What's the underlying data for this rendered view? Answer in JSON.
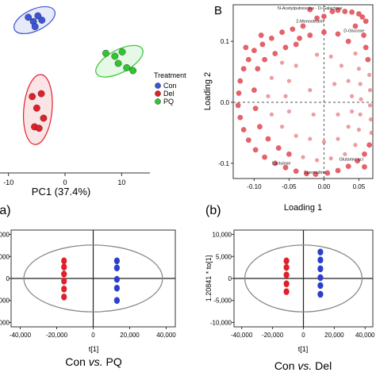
{
  "chart_data": [
    {
      "id": "pca_scores",
      "type": "scatter",
      "xlabel": "PC1 (37.4%)",
      "xticks": [
        -10,
        0,
        10
      ],
      "xlim": [
        -11.5,
        15
      ],
      "ylim": [
        -13,
        11
      ],
      "legend": {
        "title": "Treatment",
        "placement": "right"
      },
      "series": [
        {
          "name": "Con",
          "color": "#3a55d8",
          "points": [
            [
              -6.5,
              8.6
            ],
            [
              -5.6,
              8.0
            ],
            [
              -4.8,
              8.8
            ],
            [
              -5.3,
              7.3
            ],
            [
              -4.1,
              8.2
            ]
          ],
          "ellipse": {
            "cx": -5.4,
            "cy": 8.2,
            "rx": 3.9,
            "ry": 1.9,
            "angle": -25
          }
        },
        {
          "name": "Del",
          "color": "#e0202a",
          "points": [
            [
              -5.8,
              -2.4
            ],
            [
              -4.2,
              -2.0
            ],
            [
              -5.0,
              -4.0
            ],
            [
              -3.8,
              -5.4
            ],
            [
              -5.4,
              -6.6
            ],
            [
              -4.6,
              -6.8
            ]
          ],
          "ellipse": {
            "cx": -4.8,
            "cy": -4.2,
            "rx": 2.5,
            "ry": 6.2,
            "angle": 5
          }
        },
        {
          "name": "PQ",
          "color": "#2fc62f",
          "points": [
            [
              7.2,
              3.6
            ],
            [
              8.8,
              3.2
            ],
            [
              10.1,
              3.8
            ],
            [
              9.4,
              2.2
            ],
            [
              10.9,
              1.6
            ],
            [
              12.0,
              1.2
            ]
          ],
          "ellipse": {
            "cx": 9.6,
            "cy": 2.5,
            "rx": 4.6,
            "ry": 2.0,
            "angle": -28
          }
        }
      ]
    },
    {
      "id": "loading_plot",
      "panel": "B",
      "type": "scatter",
      "xlabel": "Loading 1",
      "ylabel": "Loading 2",
      "xlim": [
        -0.13,
        0.07
      ],
      "ylim": [
        -0.125,
        0.16
      ],
      "xticks": [
        -0.1,
        -0.05,
        0.0,
        0.05
      ],
      "yticks": [
        -0.1,
        0.0,
        0.1
      ],
      "xtick_labels": [
        "-0.10",
        "-0.05",
        "0.00",
        "0.05"
      ],
      "ytick_labels": [
        "-0.1",
        "0.0",
        "0.1"
      ],
      "point_color": "#e35a62",
      "annotations": [
        {
          "text": "N-Acetylputrescine · D-Galactose",
          "x": -0.02,
          "y": 0.152
        },
        {
          "text": "2-Monostearin",
          "x": -0.02,
          "y": 0.131
        },
        {
          "text": "D-Glucose",
          "x": 0.043,
          "y": 0.115
        },
        {
          "text": "Lactulose",
          "x": -0.061,
          "y": -0.102
        },
        {
          "text": "Spermidine",
          "x": -0.013,
          "y": -0.117
        },
        {
          "text": "Glutamic aci",
          "x": 0.039,
          "y": -0.096
        }
      ],
      "points": [
        [
          -0.02,
          0.152
        ],
        [
          0.02,
          0.151
        ],
        [
          0.04,
          0.148
        ],
        [
          0.05,
          0.145
        ],
        [
          0.055,
          0.14
        ],
        [
          0.06,
          0.133
        ],
        [
          -0.01,
          0.138
        ],
        [
          0.0,
          0.141
        ],
        [
          -0.03,
          0.125
        ],
        [
          -0.045,
          0.12
        ],
        [
          -0.06,
          0.115
        ],
        [
          -0.075,
          0.105
        ],
        [
          -0.088,
          0.095
        ],
        [
          -0.1,
          0.085
        ],
        [
          -0.108,
          0.07
        ],
        [
          -0.115,
          0.055
        ],
        [
          -0.12,
          0.035
        ],
        [
          -0.122,
          0.015
        ],
        [
          -0.123,
          -0.005
        ],
        [
          -0.12,
          -0.025
        ],
        [
          -0.115,
          -0.045
        ],
        [
          -0.108,
          -0.062
        ],
        [
          -0.098,
          -0.078
        ],
        [
          -0.085,
          -0.09
        ],
        [
          -0.07,
          -0.1
        ],
        [
          -0.055,
          -0.107
        ],
        [
          -0.04,
          -0.113
        ],
        [
          -0.025,
          -0.117
        ],
        [
          -0.012,
          -0.118
        ],
        [
          0.005,
          -0.116
        ],
        [
          0.02,
          -0.112
        ],
        [
          0.035,
          -0.105
        ],
        [
          0.048,
          -0.096
        ],
        [
          0.058,
          -0.085
        ],
        [
          0.065,
          -0.07
        ],
        [
          0.068,
          -0.05
        ],
        [
          0.067,
          -0.028
        ],
        [
          0.066,
          -0.005
        ],
        [
          0.066,
          0.02
        ],
        [
          0.065,
          0.045
        ],
        [
          0.063,
          0.07
        ],
        [
          0.06,
          0.09
        ],
        [
          0.057,
          0.11
        ],
        [
          0.012,
          0.149
        ],
        [
          0.03,
          0.149
        ],
        [
          -0.095,
          0.055
        ],
        [
          -0.085,
          0.07
        ],
        [
          -0.07,
          0.08
        ],
        [
          -0.055,
          0.09
        ],
        [
          -0.04,
          0.095
        ],
        [
          -0.1,
          0.02
        ],
        [
          -0.098,
          -0.01
        ],
        [
          -0.092,
          -0.04
        ],
        [
          -0.08,
          -0.06
        ],
        [
          -0.065,
          -0.075
        ],
        [
          -0.05,
          -0.085
        ],
        [
          -0.03,
          -0.09
        ],
        [
          -0.01,
          -0.095
        ],
        [
          0.01,
          -0.092
        ],
        [
          0.03,
          -0.085
        ],
        [
          0.045,
          -0.07
        ],
        [
          0.05,
          -0.045
        ],
        [
          0.052,
          -0.02
        ],
        [
          0.053,
          0.005
        ],
        [
          0.052,
          0.03
        ],
        [
          0.05,
          0.055
        ],
        [
          0.045,
          0.08
        ],
        [
          0.035,
          0.1
        ],
        [
          0.02,
          0.112
        ],
        [
          0.0,
          0.115
        ],
        [
          -0.02,
          0.11
        ],
        [
          -0.035,
          0.105
        ],
        [
          -0.06,
          0.065
        ],
        [
          -0.075,
          0.04
        ],
        [
          -0.08,
          0.01
        ],
        [
          -0.075,
          -0.02
        ],
        [
          -0.06,
          -0.04
        ],
        [
          -0.04,
          -0.055
        ],
        [
          -0.02,
          -0.06
        ],
        [
          0.0,
          -0.065
        ],
        [
          0.02,
          -0.06
        ],
        [
          0.035,
          -0.04
        ],
        [
          0.04,
          -0.015
        ],
        [
          0.04,
          0.01
        ],
        [
          0.035,
          0.035
        ],
        [
          0.025,
          0.06
        ],
        [
          0.01,
          0.075
        ],
        [
          -0.01,
          0.078
        ],
        [
          -0.04,
          0.06
        ],
        [
          -0.05,
          0.035
        ],
        [
          -0.055,
          0.01
        ],
        [
          -0.05,
          -0.015
        ],
        [
          0.015,
          0.03
        ],
        [
          0.02,
          -0.02
        ],
        [
          -0.02,
          0.02
        ],
        [
          -0.015,
          -0.02
        ],
        [
          -0.09,
          0.11
        ],
        [
          -0.112,
          0.09
        ],
        [
          0.045,
          0.125
        ],
        [
          0.058,
          -0.106
        ]
      ]
    },
    {
      "id": "opls_con_pq",
      "panel": "(a)",
      "type": "scatter",
      "caption": "Con vs. PQ",
      "xlabel": "t[1]",
      "xlim": [
        -45000,
        45000
      ],
      "ylim": [
        -11000,
        11000
      ],
      "xticks": [
        -40000,
        -20000,
        0,
        20000,
        40000
      ],
      "xtick_labels": [
        "-40,000",
        "-20,000",
        "0",
        "20,000",
        "40,000"
      ],
      "ytick_labels_visible": [
        "0000",
        "5000",
        "0",
        "5000",
        "0000"
      ],
      "ellipse": {
        "cx": 0,
        "cy": 0,
        "rx": 38000,
        "ry": 7600
      },
      "series": [
        {
          "name": "Con",
          "color": "#e0202a",
          "points": [
            [
              -16000,
              4000
            ],
            [
              -16000,
              2600
            ],
            [
              -16000,
              1000
            ],
            [
              -16000,
              -600
            ],
            [
              -16000,
              -2400
            ],
            [
              -16000,
              -4200
            ]
          ]
        },
        {
          "name": "PQ",
          "color": "#2b3fcf",
          "points": [
            [
              13000,
              4000
            ],
            [
              13000,
              2400
            ],
            [
              13000,
              -200
            ],
            [
              13000,
              -2200
            ],
            [
              13000,
              -5000
            ]
          ]
        }
      ]
    },
    {
      "id": "opls_con_del",
      "panel": "(b)",
      "type": "scatter",
      "caption": "Con vs. Del",
      "xlabel": "t[1]",
      "ylabel": "1.20841 * to[1]",
      "xlim": [
        -45000,
        45000
      ],
      "ylim": [
        -11000,
        11000
      ],
      "xticks": [
        -40000,
        -20000,
        0,
        20000,
        40000
      ],
      "yticks": [
        -10000,
        -5000,
        0,
        5000,
        10000
      ],
      "xtick_labels": [
        "-40,000",
        "-20,000",
        "0",
        "20,000",
        "40,000"
      ],
      "ytick_labels": [
        "-10,000",
        "-5,000",
        "0",
        "5,000",
        "10,000"
      ],
      "ellipse": {
        "cx": 0,
        "cy": 0,
        "rx": 38000,
        "ry": 7600
      },
      "series": [
        {
          "name": "Con",
          "color": "#e0202a",
          "points": [
            [
              -11000,
              4000
            ],
            [
              -11000,
              2500
            ],
            [
              -11000,
              800
            ],
            [
              -11000,
              -1200
            ],
            [
              -11000,
              -3000
            ]
          ]
        },
        {
          "name": "Del",
          "color": "#2b3fcf",
          "points": [
            [
              11000,
              6000
            ],
            [
              11000,
              4200
            ],
            [
              11000,
              2200
            ],
            [
              11000,
              200
            ],
            [
              11000,
              -1600
            ],
            [
              11000,
              -3600
            ]
          ]
        }
      ]
    }
  ]
}
